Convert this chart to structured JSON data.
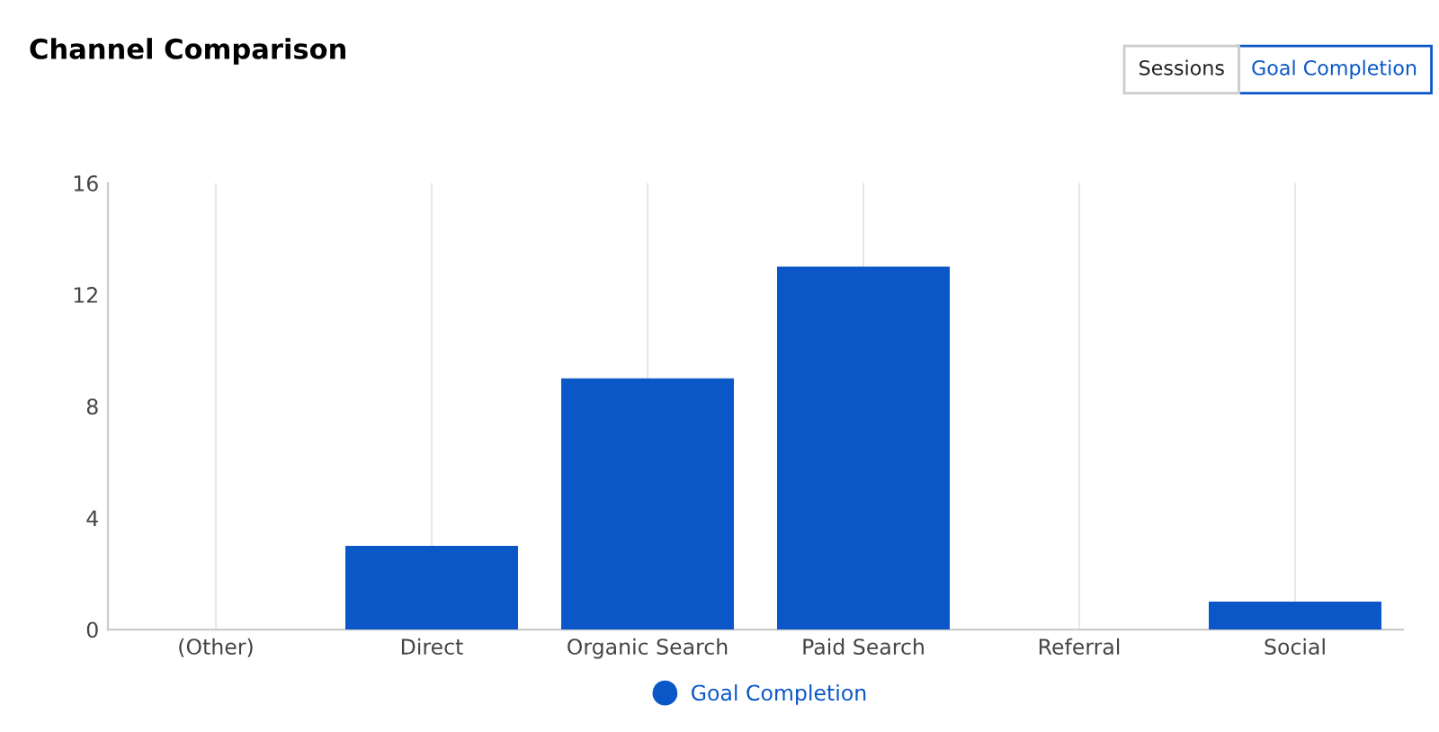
{
  "chart_data": {
    "type": "bar",
    "title": "Channel Comparison",
    "categories": [
      "(Other)",
      "Direct",
      "Organic Search",
      "Paid Search",
      "Referral",
      "Social"
    ],
    "series": [
      {
        "name": "Goal Completion",
        "color": "#0b57c8",
        "values": [
          0,
          3,
          9,
          13,
          0,
          1
        ]
      }
    ],
    "ylim": [
      0,
      16
    ],
    "yticks": [
      0,
      4,
      8,
      12,
      16
    ],
    "grid": "x",
    "legend": "bottom",
    "annotations": [
      "Sessions",
      "Goal Completion"
    ]
  }
}
